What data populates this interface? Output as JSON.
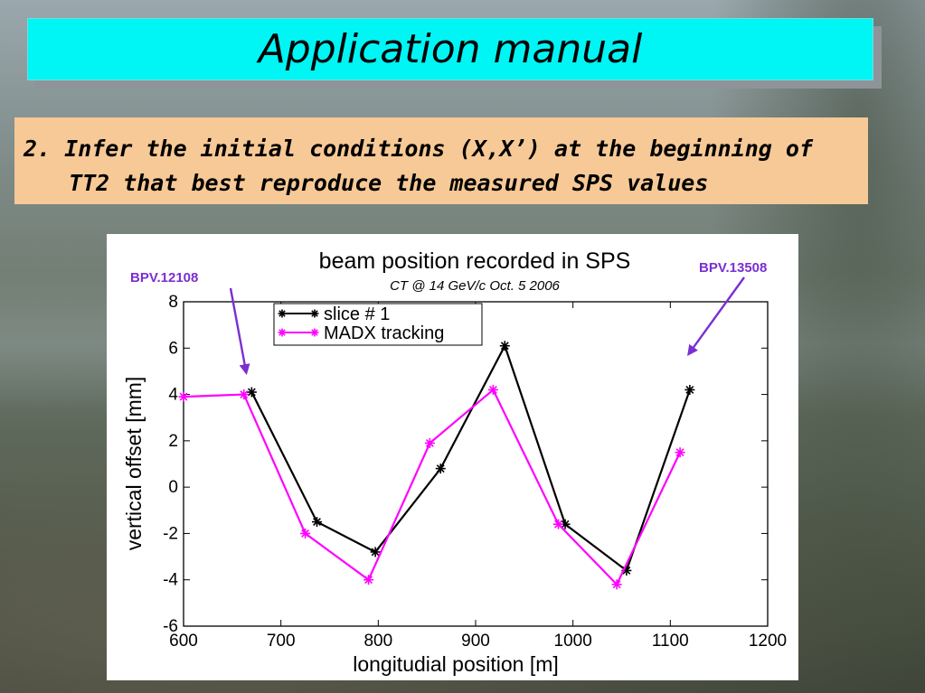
{
  "slide": {
    "title": "Application manual",
    "subtitle_line1": "2. Infer the initial conditions (X,X’) at the beginning of",
    "subtitle_line2": "TT2 that best reproduce the measured SPS values"
  },
  "colors": {
    "title_bg": "#00f5f5",
    "subtitle_bg": "#f7c996",
    "series_slice": "#000000",
    "series_madx": "#ff00ff",
    "annotation": "#7b2fd0"
  },
  "chart_data": {
    "type": "line",
    "title": "beam position recorded in SPS",
    "subtitle": "CT @ 14 GeV/c  Oct. 5 2006",
    "xlabel": "longitudial position [m]",
    "ylabel": "vertical offset [mm]",
    "xlim": [
      600,
      1200
    ],
    "ylim": [
      -6,
      8
    ],
    "xticks": [
      600,
      700,
      800,
      900,
      1000,
      1100,
      1200
    ],
    "yticks": [
      -6,
      -4,
      -2,
      0,
      2,
      4,
      6,
      8
    ],
    "legend_position": "top-left",
    "grid": false,
    "series": [
      {
        "name": "slice # 1",
        "color": "#000000",
        "points": [
          [
            670,
            4.1
          ],
          [
            737,
            -1.5
          ],
          [
            797,
            -2.8
          ],
          [
            864,
            0.8
          ],
          [
            930,
            6.1
          ],
          [
            992,
            -1.6
          ],
          [
            1055,
            -3.6
          ],
          [
            1120,
            4.2
          ]
        ]
      },
      {
        "name": "MADX tracking",
        "color": "#ff00ff",
        "points": [
          [
            600,
            3.9
          ],
          [
            662,
            4.0
          ],
          [
            725,
            -2.0
          ],
          [
            790,
            -4.0
          ],
          [
            853,
            1.9
          ],
          [
            918,
            4.2
          ],
          [
            985,
            -1.6
          ],
          [
            1045,
            -4.2
          ],
          [
            1110,
            1.5
          ]
        ]
      }
    ],
    "annotations": [
      {
        "label": "BPV.12108",
        "target": [
          670,
          5.4
        ]
      },
      {
        "label": "BPV.13508",
        "target": [
          1115,
          6.4
        ]
      }
    ]
  }
}
